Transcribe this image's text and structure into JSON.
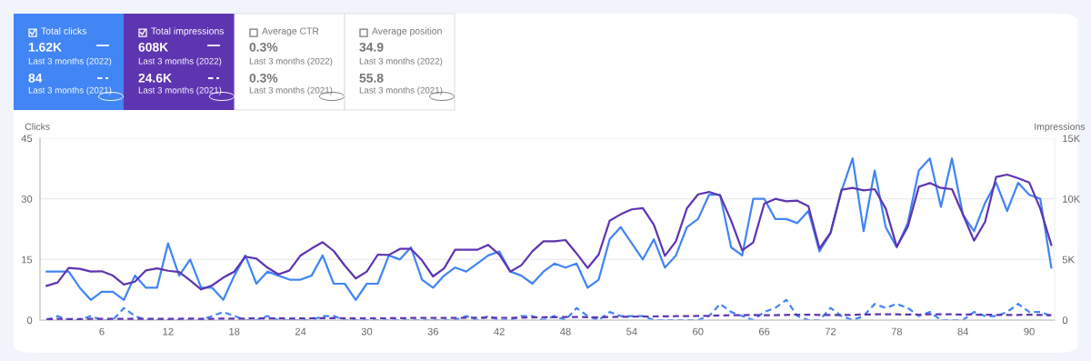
{
  "chart_data": {
    "type": "line",
    "annotations": [
      "Total clicks",
      "1.62K",
      "Last 3 months (2022)",
      "84",
      "Last 3 months (2021)",
      "Total impressions",
      "608K",
      "Last 3 months (2022)",
      "24.6K",
      "Last 3 months (2021)",
      "Average CTR",
      "0.3%",
      "Last 3 months (2022)",
      "0.3%",
      "Last 3 months (2021)",
      "Average position",
      "34.9",
      "Last 3 months (2022)",
      "55.8",
      "Last 3 months (2021)"
    ],
    "ylabel": "Clicks",
    "y2label": "Impressions",
    "x": [
      1,
      2,
      3,
      4,
      5,
      6,
      7,
      8,
      9,
      10,
      11,
      12,
      13,
      14,
      15,
      16,
      17,
      18,
      19,
      20,
      21,
      22,
      23,
      24,
      25,
      26,
      27,
      28,
      29,
      30,
      31,
      32,
      33,
      34,
      35,
      36,
      37,
      38,
      39,
      40,
      41,
      42,
      43,
      44,
      45,
      46,
      47,
      48,
      49,
      50,
      51,
      52,
      53,
      54,
      55,
      56,
      57,
      58,
      59,
      60,
      61,
      62,
      63,
      64,
      65,
      66,
      67,
      68,
      69,
      70,
      71,
      72,
      73,
      74,
      75,
      76,
      77,
      78,
      79,
      80,
      81,
      82,
      83,
      84,
      85,
      86,
      87,
      88,
      89,
      90,
      91,
      92
    ],
    "xlim": [
      0.4,
      92.3
    ],
    "xticks": [
      6,
      12,
      18,
      24,
      30,
      36,
      42,
      48,
      54,
      60,
      66,
      72,
      78,
      84,
      90
    ],
    "ylim": [
      0,
      45
    ],
    "yticks": [
      0,
      15,
      30,
      45
    ],
    "y2lim": [
      0,
      15000
    ],
    "y2ticks": [
      0,
      {
        "value": 5000,
        "label": "5K"
      },
      {
        "value": 10000,
        "label": "10K"
      },
      {
        "value": 15000,
        "label": "15K"
      }
    ],
    "grid": "y",
    "legend": false,
    "marker": "none",
    "series": [
      {
        "color": "#4285f4",
        "line_style": "solid",
        "values": [
          12,
          12,
          12,
          8,
          5,
          7,
          7,
          5,
          11,
          8,
          8,
          19,
          11,
          15,
          8,
          8,
          5,
          11,
          16,
          9,
          12,
          11,
          10,
          10,
          11,
          16,
          9,
          9,
          5,
          9,
          9,
          16,
          15,
          18,
          10,
          8,
          11,
          13,
          12,
          14,
          16,
          17,
          12,
          11,
          9,
          12,
          14,
          13,
          14,
          8,
          10,
          20,
          23,
          19,
          15,
          20,
          13,
          16,
          23,
          25,
          31,
          31,
          18,
          16,
          30,
          30,
          25,
          25,
          24,
          27,
          17,
          21.5,
          32,
          40,
          22,
          37,
          23,
          18,
          24,
          37,
          40,
          28,
          40,
          26,
          22,
          29,
          34,
          27,
          34,
          31,
          30,
          13
        ]
      },
      {
        "color": "#4285f4",
        "line_style": "dashed",
        "values": [
          0,
          1,
          0,
          0,
          1,
          0,
          0,
          3,
          1,
          0,
          0,
          0,
          0,
          0,
          0,
          1,
          2,
          1,
          0,
          0,
          1,
          0,
          0,
          0,
          0,
          1,
          1,
          0,
          0,
          0,
          0,
          0,
          0,
          0,
          0,
          0,
          0,
          0,
          1,
          0,
          1,
          0,
          0,
          1,
          1,
          0,
          1,
          0,
          3,
          1,
          0,
          2,
          1,
          1,
          1,
          0,
          0,
          0,
          0,
          0,
          1,
          4,
          2,
          1,
          0,
          2,
          3,
          5,
          1,
          0,
          0,
          3,
          1,
          0,
          1,
          4,
          3,
          4,
          3,
          1,
          2,
          0,
          0,
          0,
          2,
          1,
          1,
          2,
          4,
          2,
          2,
          1
        ]
      },
      {
        "color": "#5e35b1",
        "line_style": "solid",
        "axis": "y2",
        "values": [
          2830,
          3100,
          4300,
          4230,
          4000,
          4030,
          3670,
          2930,
          3170,
          4100,
          4270,
          4070,
          3970,
          3270,
          2530,
          2870,
          3500,
          4000,
          5230,
          5070,
          4330,
          3770,
          4100,
          5330,
          5900,
          6430,
          5700,
          4500,
          3430,
          4000,
          5400,
          5370,
          5870,
          5870,
          4930,
          3600,
          4270,
          5800,
          5800,
          5800,
          6200,
          5400,
          4000,
          4530,
          5670,
          6500,
          6500,
          6600,
          5500,
          4300,
          5400,
          8200,
          8730,
          9130,
          9230,
          7870,
          5300,
          6500,
          9230,
          10370,
          10570,
          10270,
          8200,
          5750,
          6400,
          9600,
          10000,
          9800,
          9850,
          9400,
          5900,
          7200,
          10750,
          10900,
          10700,
          10800,
          9200,
          6050,
          7700,
          11000,
          11300,
          10900,
          10800,
          8700,
          6550,
          8100,
          11800,
          12000,
          11700,
          11350,
          9200,
          6200
        ]
      },
      {
        "color": "#5e35b1",
        "line_style": "dashed",
        "axis": "y2",
        "values": [
          80,
          100,
          90,
          90,
          100,
          100,
          100,
          110,
          110,
          100,
          100,
          110,
          110,
          120,
          110,
          110,
          120,
          130,
          130,
          140,
          150,
          140,
          130,
          140,
          150,
          160,
          160,
          150,
          140,
          150,
          150,
          150,
          160,
          170,
          170,
          170,
          170,
          180,
          190,
          200,
          200,
          190,
          180,
          200,
          220,
          230,
          240,
          250,
          250,
          240,
          220,
          250,
          270,
          280,
          290,
          300,
          310,
          320,
          330,
          340,
          350,
          380,
          400,
          410,
          420,
          400,
          410,
          430,
          450,
          440,
          430,
          420,
          410,
          430,
          460,
          470,
          480,
          470,
          460,
          450,
          470,
          480,
          470,
          460,
          450,
          440,
          430,
          420,
          430,
          440,
          420,
          400
        ]
      }
    ]
  }
}
